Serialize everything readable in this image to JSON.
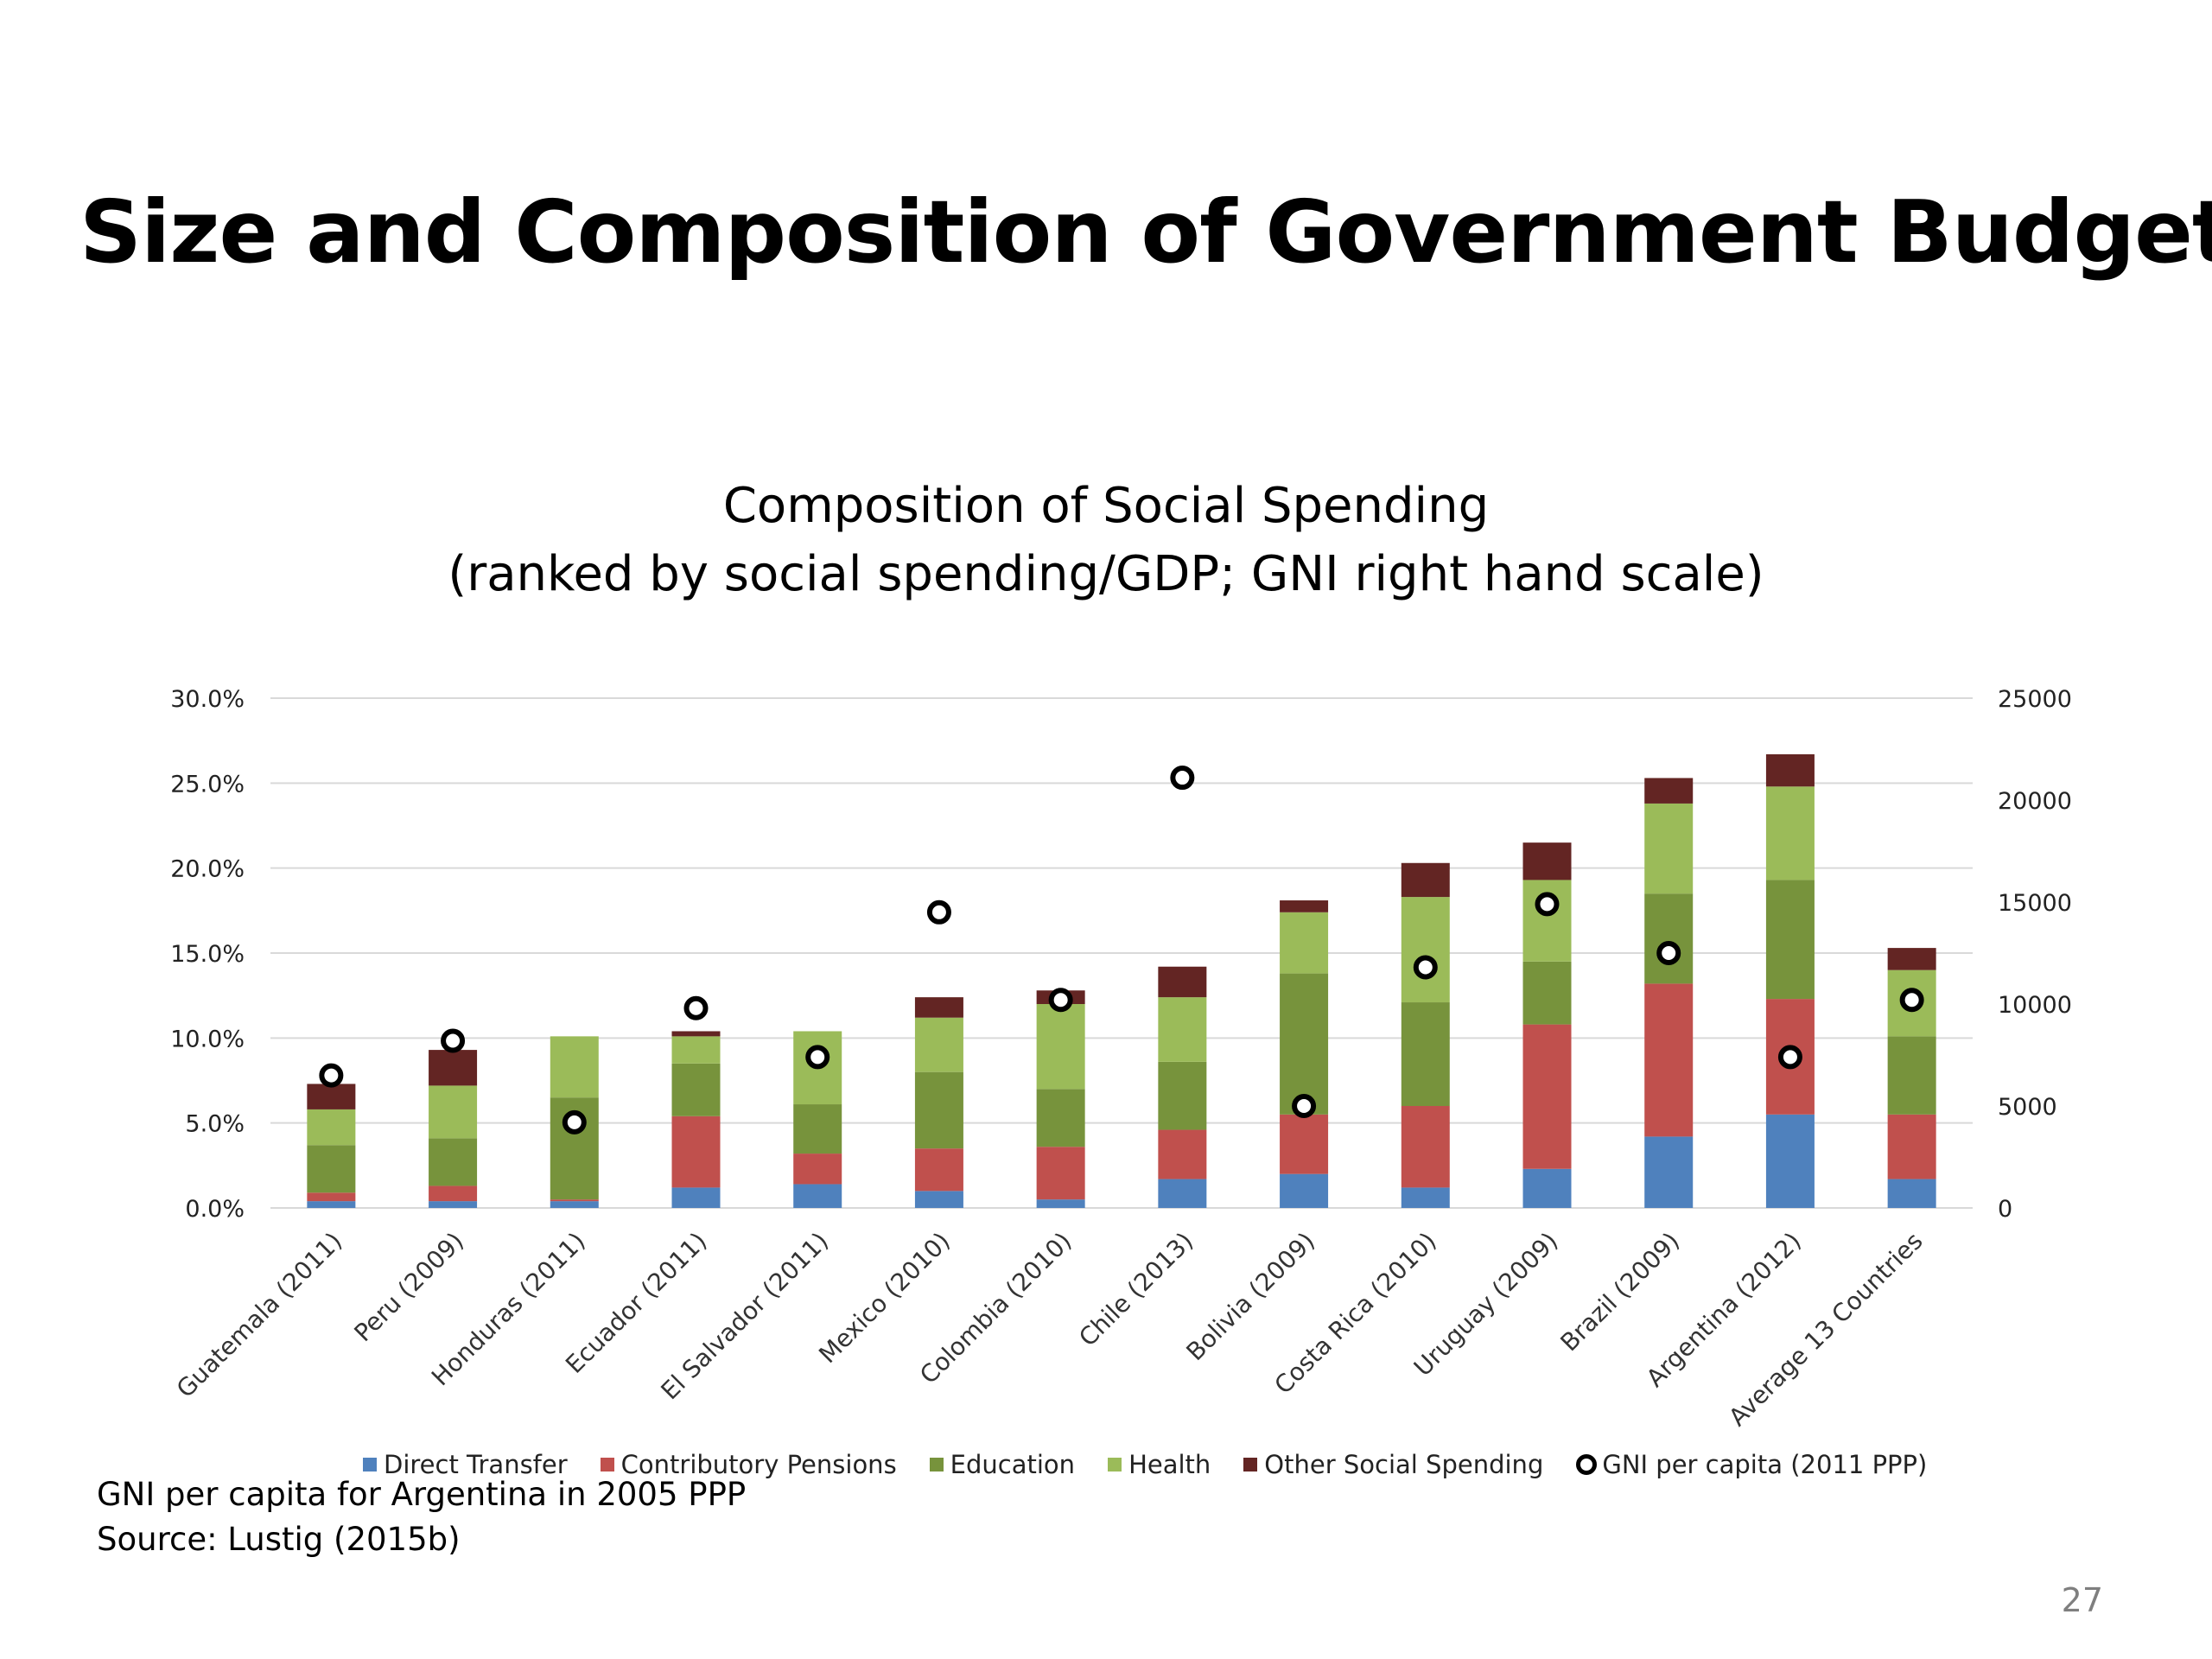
{
  "slide": {
    "title": "Size and Composition of Government Budget",
    "page_number": "27",
    "notes": [
      "GNI per capita for Argentina in 2005 PPP",
      "Source: Lustig (2015b)"
    ]
  },
  "colors": {
    "Direct Transfer": "#4f81bd",
    "Contributory Pensions": "#c0504d",
    "Education": "#77933c",
    "Health": "#9bbb59",
    "Other Social Spending": "#632523",
    "gridline": "#d9d9d9"
  },
  "chart_data": {
    "type": "bar",
    "stacked": true,
    "title": [
      "Composition of Social Spending",
      "(ranked by social spending/GDP; GNI right hand scale)"
    ],
    "categories": [
      "Guatemala (2011)",
      "Peru (2009)",
      "Honduras (2011)",
      "Ecuador (2011)",
      "El Salvador (2011)",
      "Mexico (2010)",
      "Colombia (2010)",
      "Chile (2013)",
      "Bolivia (2009)",
      "Costa Rica (2010)",
      "Uruguay (2009)",
      "Brazil (2009)",
      "Argentina (2012)",
      "Average 13 Countries"
    ],
    "series": [
      {
        "name": "Direct Transfer",
        "values": [
          0.4,
          0.4,
          0.4,
          1.2,
          1.4,
          1.0,
          0.5,
          1.7,
          2.0,
          1.2,
          2.3,
          4.2,
          5.5,
          1.7
        ]
      },
      {
        "name": "Contributory Pensions",
        "values": [
          0.5,
          0.9,
          0.1,
          4.2,
          1.8,
          2.5,
          3.1,
          2.9,
          3.5,
          4.8,
          8.5,
          9.0,
          6.8,
          3.8
        ]
      },
      {
        "name": "Education",
        "values": [
          2.8,
          2.8,
          6.0,
          3.1,
          2.9,
          4.5,
          3.4,
          4.0,
          8.3,
          6.1,
          3.7,
          5.3,
          7.0,
          4.6
        ]
      },
      {
        "name": "Health",
        "values": [
          2.1,
          3.1,
          3.6,
          1.6,
          4.3,
          3.2,
          5.0,
          3.8,
          3.6,
          6.2,
          4.8,
          5.3,
          5.5,
          3.9
        ]
      },
      {
        "name": "Other Social Spending",
        "values": [
          1.5,
          2.1,
          0.0,
          0.3,
          0.0,
          1.2,
          0.8,
          1.8,
          0.7,
          2.0,
          2.2,
          1.5,
          1.9,
          1.3
        ]
      },
      {
        "name": "GNI per capita (2011 PPP)",
        "type": "scatter",
        "axis": "right",
        "values": [
          6500,
          8200,
          4200,
          9800,
          7400,
          14500,
          10200,
          21100,
          5000,
          11800,
          14900,
          12500,
          7400,
          10200
        ]
      }
    ],
    "y_left": {
      "min": 0,
      "max": 30,
      "ticks": [
        "0.0%",
        "5.0%",
        "10.0%",
        "15.0%",
        "20.0%",
        "25.0%",
        "30.0%"
      ]
    },
    "y_right": {
      "min": 0,
      "max": 25000,
      "ticks": [
        "0",
        "5000",
        "10000",
        "15000",
        "20000",
        "25000"
      ]
    },
    "grid": true,
    "legend_position": "bottom"
  }
}
